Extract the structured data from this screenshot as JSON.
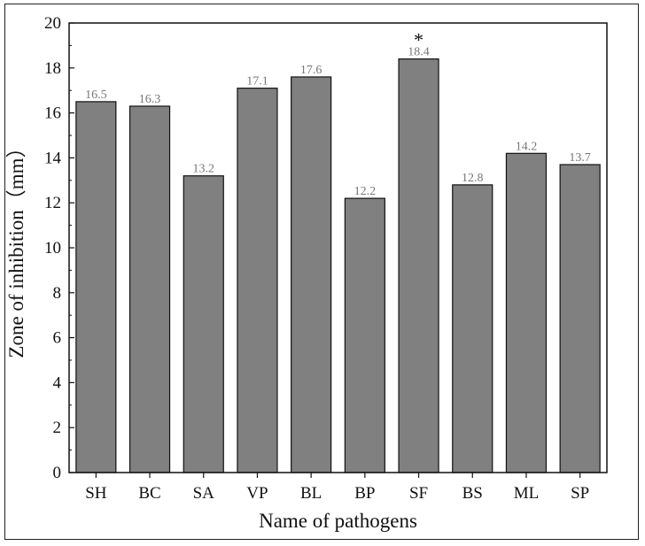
{
  "chart_data": {
    "type": "bar",
    "title": "",
    "xlabel": "Name of pathogens",
    "ylabel": "Zone of inhibition（mm）",
    "categories": [
      "SH",
      "BC",
      "SA",
      "VP",
      "BL",
      "BP",
      "SF",
      "BS",
      "ML",
      "SP"
    ],
    "values": [
      16.5,
      16.3,
      13.2,
      17.1,
      17.6,
      12.2,
      18.4,
      12.8,
      14.2,
      13.7
    ],
    "data_labels": [
      "16.5",
      "16.3",
      "13.2",
      "17.1",
      "17.6",
      "12.2",
      "18.4",
      "12.8",
      "14.2",
      "13.7"
    ],
    "annotations": [
      {
        "category": "SF",
        "text": "*"
      }
    ],
    "ylim": [
      0,
      20
    ],
    "yticks": [
      0,
      2,
      4,
      6,
      8,
      10,
      12,
      14,
      16,
      18,
      20
    ],
    "grid": false,
    "colors": {
      "bar_fill": "#808080",
      "bar_edge": "#111111",
      "label": "#777777"
    }
  }
}
